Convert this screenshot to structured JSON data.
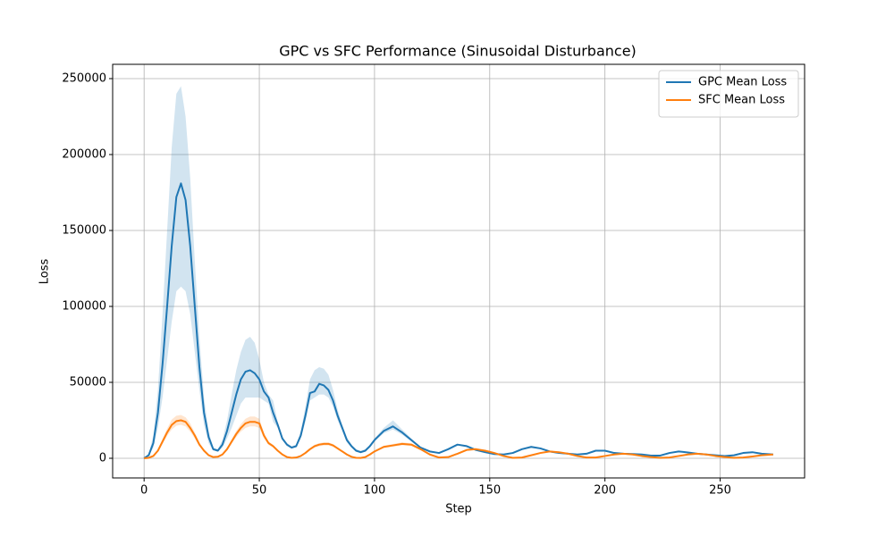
{
  "chart_data": {
    "type": "line",
    "title": "GPC vs SFC Performance (Sinusoidal Disturbance)",
    "xlabel": "Step",
    "ylabel": "Loss",
    "x": [
      0,
      2,
      4,
      6,
      8,
      10,
      12,
      14,
      16,
      18,
      20,
      22,
      24,
      26,
      28,
      30,
      32,
      34,
      36,
      38,
      40,
      42,
      44,
      46,
      48,
      50,
      52,
      54,
      56,
      58,
      60,
      62,
      64,
      66,
      68,
      70,
      72,
      74,
      76,
      78,
      80,
      82,
      84,
      86,
      88,
      90,
      92,
      94,
      96,
      98,
      100,
      104,
      108,
      112,
      116,
      120,
      124,
      128,
      132,
      136,
      140,
      144,
      148,
      152,
      156,
      160,
      164,
      168,
      172,
      176,
      180,
      184,
      188,
      192,
      196,
      200,
      204,
      208,
      212,
      216,
      220,
      224,
      228,
      232,
      236,
      240,
      244,
      248,
      252,
      256,
      260,
      264,
      268,
      273
    ],
    "series": [
      {
        "name": "GPC Mean Loss",
        "color": "#1f77b4",
        "values": [
          0,
          2000,
          10000,
          30000,
          62000,
          100000,
          140000,
          172000,
          181000,
          170000,
          140000,
          100000,
          60000,
          30000,
          14000,
          6000,
          5000,
          9000,
          18000,
          30000,
          42000,
          52000,
          57000,
          58000,
          56000,
          52000,
          44000,
          40000,
          30000,
          22000,
          13000,
          9000,
          7000,
          8000,
          15000,
          28000,
          43000,
          44000,
          49000,
          48000,
          45000,
          38000,
          28000,
          20000,
          12000,
          8000,
          5000,
          4000,
          5000,
          8000,
          12000,
          18000,
          21000,
          17000,
          12000,
          7000,
          4500,
          3500,
          6000,
          9000,
          8000,
          5500,
          4000,
          2800,
          2500,
          3500,
          6000,
          7500,
          6500,
          4500,
          3500,
          3000,
          2500,
          3000,
          5000,
          5000,
          3500,
          3000,
          2800,
          2500,
          1800,
          1800,
          3500,
          4500,
          3800,
          3000,
          2500,
          2000,
          1500,
          2000,
          3500,
          4000,
          3000,
          2500
        ],
        "upper": [
          0,
          3000,
          15000,
          45000,
          95000,
          150000,
          205000,
          240000,
          245000,
          225000,
          185000,
          130000,
          80000,
          40000,
          18000,
          7000,
          6000,
          12000,
          25000,
          42000,
          58000,
          70000,
          78000,
          80000,
          76000,
          65000,
          50000,
          42000,
          38000,
          24000,
          14000,
          10000,
          8000,
          9000,
          18000,
          34000,
          52000,
          58000,
          60000,
          59000,
          55000,
          45000,
          32000,
          22000,
          14000,
          9000,
          6000,
          5000,
          6000,
          9000,
          13000,
          20000,
          25000,
          19000,
          13000,
          7500,
          5000,
          4000,
          6500,
          9500,
          8500,
          6000,
          4300,
          3100,
          2800,
          3800,
          6500,
          8200,
          7000,
          4800,
          3800,
          3300,
          2800,
          3300,
          5500,
          5500,
          3800,
          3300,
          3100,
          2800,
          2000,
          2000,
          3800,
          4900,
          4100,
          3300,
          2800,
          2200,
          1700,
          2200,
          3800,
          4300,
          3300,
          2800
        ],
        "lower": [
          0,
          1500,
          7000,
          20000,
          40000,
          65000,
          90000,
          110000,
          113000,
          110000,
          95000,
          70000,
          45000,
          22000,
          10000,
          5000,
          4500,
          7000,
          13000,
          20000,
          28000,
          36000,
          40000,
          40000,
          40000,
          40000,
          38000,
          36000,
          24000,
          20000,
          12000,
          8000,
          6500,
          7000,
          13000,
          24000,
          38000,
          40000,
          42000,
          42000,
          40000,
          34000,
          25000,
          18000,
          10500,
          7000,
          4500,
          3500,
          4500,
          7000,
          11000,
          16500,
          19000,
          15500,
          11000,
          6500,
          4000,
          3000,
          5500,
          8500,
          7500,
          5000,
          3700,
          2500,
          2200,
          3200,
          5500,
          7000,
          6000,
          4200,
          3200,
          2700,
          2200,
          2700,
          4600,
          4600,
          3200,
          2700,
          2500,
          2200,
          1600,
          1600,
          3200,
          4100,
          3500,
          2700,
          2200,
          1800,
          1300,
          1800,
          3200,
          3700,
          2700,
          2200
        ]
      },
      {
        "name": "SFC Mean Loss",
        "color": "#ff7f0e",
        "values": [
          0,
          300,
          1500,
          5000,
          11000,
          17000,
          22000,
          24500,
          25000,
          24000,
          20000,
          15000,
          9000,
          5000,
          2000,
          800,
          1000,
          2500,
          6000,
          11000,
          16000,
          20000,
          23000,
          24000,
          24000,
          23000,
          15000,
          10000,
          8000,
          5000,
          2500,
          800,
          300,
          500,
          1500,
          3500,
          6000,
          8000,
          9000,
          9500,
          9500,
          8500,
          6500,
          4500,
          2500,
          1000,
          300,
          200,
          800,
          2500,
          4500,
          7500,
          8500,
          9500,
          9000,
          6000,
          2500,
          500,
          800,
          3000,
          5500,
          6000,
          5000,
          3500,
          1500,
          300,
          500,
          2000,
          3500,
          4500,
          4000,
          3000,
          1500,
          500,
          500,
          1500,
          2500,
          3000,
          2500,
          1500,
          800,
          300,
          500,
          1500,
          2500,
          3000,
          2500,
          1500,
          800,
          300,
          500,
          1200,
          2000,
          2500
        ],
        "upper": [
          0,
          400,
          1800,
          6000,
          13000,
          19500,
          25500,
          28000,
          28500,
          27000,
          23000,
          17000,
          10500,
          5800,
          2300,
          900,
          1200,
          2900,
          7000,
          12500,
          18000,
          22500,
          26000,
          27500,
          27500,
          26000,
          17000,
          11000,
          9000,
          5600,
          2800,
          900,
          350,
          600,
          1700,
          4000,
          6800,
          9000,
          10000,
          10500,
          10500,
          9400,
          7200,
          5000,
          2800,
          1100,
          350,
          250,
          900,
          2800,
          5000,
          8300,
          9400,
          10500,
          9900,
          6600,
          2800,
          550,
          900,
          3300,
          6100,
          6600,
          5500,
          3900,
          1650,
          350,
          550,
          2200,
          3900,
          5000,
          4400,
          3300,
          1650,
          550,
          550,
          1650,
          2750,
          3300,
          2750,
          1650,
          900,
          350,
          550,
          1650,
          2750,
          3300,
          2750,
          1650,
          900,
          350,
          550,
          1300,
          2200,
          2750
        ],
        "lower": [
          0,
          250,
          1300,
          4300,
          9500,
          14800,
          19000,
          21500,
          22000,
          21000,
          17500,
          13000,
          7800,
          4400,
          1700,
          700,
          850,
          2200,
          5200,
          9600,
          14000,
          17500,
          20000,
          21000,
          21000,
          20000,
          13000,
          8800,
          7000,
          4400,
          2200,
          700,
          250,
          450,
          1300,
          3000,
          5200,
          7000,
          7900,
          8400,
          8400,
          7500,
          5700,
          4000,
          2200,
          900,
          250,
          150,
          700,
          2200,
          4000,
          6700,
          7600,
          8500,
          8100,
          5400,
          2200,
          450,
          700,
          2700,
          4900,
          5400,
          4500,
          3100,
          1350,
          250,
          450,
          1800,
          3100,
          4000,
          3600,
          2700,
          1350,
          450,
          450,
          1350,
          2250,
          2700,
          2250,
          1350,
          700,
          250,
          450,
          1350,
          2250,
          2700,
          2250,
          1350,
          700,
          250,
          450,
          1100,
          1800,
          2250
        ]
      }
    ],
    "xlim": [
      -13.65,
      286.65
    ],
    "ylim": [
      -12941,
      259412
    ],
    "xticks": [
      0,
      50,
      100,
      150,
      200,
      250
    ],
    "yticks": [
      0,
      50000,
      100000,
      150000,
      200000,
      250000
    ],
    "grid": true,
    "legend": "upper right"
  }
}
